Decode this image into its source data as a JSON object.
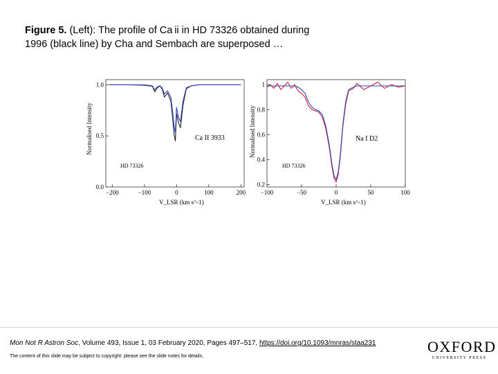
{
  "caption": {
    "label": "Figure 5.",
    "line1": " (Left): The profile of Ca ii in HD 73326 obtained during",
    "line2": "1996 (black line) by Cha and Sembach are superposed …"
  },
  "chart_data": [
    {
      "type": "line",
      "title": "",
      "xlabel": "V_LSR (km s^-1)",
      "ylabel": "Normalised Intensity",
      "xlim": [
        -220,
        210
      ],
      "ylim": [
        0.0,
        1.05
      ],
      "xticks": [
        -200,
        -100,
        0,
        100,
        200
      ],
      "yticks": [
        0.0,
        0.5,
        1.0
      ],
      "xtick_labels": [
        "−200",
        "−100",
        "0",
        "100",
        "200"
      ],
      "ytick_labels": [
        "0.0",
        "0.5",
        "1.0"
      ],
      "annotations": [
        "Ca II 3933",
        "HD 73326"
      ],
      "series": [
        {
          "name": "black (1996)",
          "color": "#222222",
          "x": [
            -210,
            -150,
            -100,
            -75,
            -68,
            -60,
            -52,
            -45,
            -38,
            -28,
            -18,
            -12,
            -8,
            -4,
            0,
            6,
            12,
            20,
            30,
            45,
            70,
            120,
            160,
            200
          ],
          "y": [
            1.0,
            1.0,
            0.995,
            0.985,
            0.93,
            0.97,
            0.99,
            0.96,
            0.88,
            0.92,
            0.84,
            0.67,
            0.52,
            0.45,
            0.72,
            0.63,
            0.58,
            0.8,
            0.96,
            0.99,
            1.0,
            1.0,
            1.0,
            1.0
          ]
        },
        {
          "name": "blue",
          "color": "#3344bb",
          "x": [
            -210,
            -150,
            -100,
            -75,
            -68,
            -60,
            -52,
            -45,
            -38,
            -28,
            -18,
            -12,
            -8,
            -4,
            0,
            6,
            12,
            20,
            30,
            45,
            70,
            120,
            160,
            200
          ],
          "y": [
            1.0,
            1.0,
            1.0,
            0.99,
            0.95,
            0.98,
            0.99,
            0.97,
            0.91,
            0.94,
            0.88,
            0.73,
            0.6,
            0.53,
            0.78,
            0.68,
            0.64,
            0.84,
            0.97,
            0.99,
            1.0,
            1.0,
            1.0,
            1.0
          ]
        }
      ]
    },
    {
      "type": "line",
      "title": "",
      "xlabel": "V_LSR (km s^-1)",
      "ylabel": "Normalised Intensity",
      "xlim": [
        -100,
        100
      ],
      "ylim": [
        0.18,
        1.04
      ],
      "xticks": [
        -100,
        -50,
        0,
        50,
        100
      ],
      "yticks": [
        0.2,
        0.4,
        0.6,
        0.8,
        1.0
      ],
      "xtick_labels": [
        "−100",
        "−50",
        "0",
        "50",
        "100"
      ],
      "ytick_labels": [
        "0.2",
        "0.4",
        "0.6",
        "0.8",
        "1"
      ],
      "annotations": [
        "Na I D2",
        "HD 73326"
      ],
      "series": [
        {
          "name": "red",
          "color": "#cc2233",
          "x": [
            -100,
            -95,
            -90,
            -85,
            -80,
            -75,
            -70,
            -65,
            -60,
            -55,
            -50,
            -45,
            -40,
            -35,
            -30,
            -25,
            -20,
            -15,
            -10,
            -6,
            -3,
            0,
            3,
            6,
            10,
            14,
            18,
            25,
            30,
            40,
            50,
            60,
            70,
            80,
            90,
            100
          ],
          "y": [
            0.98,
            1.0,
            0.97,
            1.01,
            0.96,
            0.99,
            1.02,
            0.97,
            1.0,
            0.95,
            0.93,
            0.9,
            0.83,
            0.8,
            0.79,
            0.78,
            0.74,
            0.65,
            0.5,
            0.34,
            0.25,
            0.22,
            0.28,
            0.42,
            0.68,
            0.85,
            0.95,
            0.97,
            1.01,
            0.96,
            0.99,
            1.02,
            0.97,
            1.0,
            0.98,
            0.99
          ]
        },
        {
          "name": "blue",
          "color": "#3344bb",
          "x": [
            -100,
            -90,
            -80,
            -70,
            -60,
            -55,
            -50,
            -45,
            -40,
            -35,
            -30,
            -25,
            -20,
            -15,
            -10,
            -6,
            -3,
            0,
            3,
            6,
            10,
            14,
            18,
            25,
            30,
            40,
            50,
            60,
            70,
            80,
            90,
            100
          ],
          "y": [
            0.99,
            0.99,
            0.99,
            0.99,
            0.99,
            0.98,
            0.96,
            0.93,
            0.86,
            0.82,
            0.8,
            0.79,
            0.76,
            0.67,
            0.52,
            0.36,
            0.27,
            0.24,
            0.3,
            0.44,
            0.7,
            0.87,
            0.96,
            0.98,
            0.99,
            0.99,
            0.99,
            0.99,
            0.99,
            0.99,
            0.99,
            0.99
          ]
        }
      ]
    }
  ],
  "footer": {
    "journal": "Mon Not R Astron Soc",
    "details": ", Volume 493, Issue 1, 03 February 2020, Pages 497–517, ",
    "doi": "https://doi.org/10.1093/mnras/staa231",
    "copyright": "The content of this slide may be subject to copyright: please see the slide notes for details."
  },
  "logo": {
    "word": "OXFORD",
    "sub": "UNIVERSITY PRESS"
  },
  "colors": {
    "black_line": "#222222",
    "blue_line": "#3344bb",
    "red_line": "#cc2233"
  }
}
